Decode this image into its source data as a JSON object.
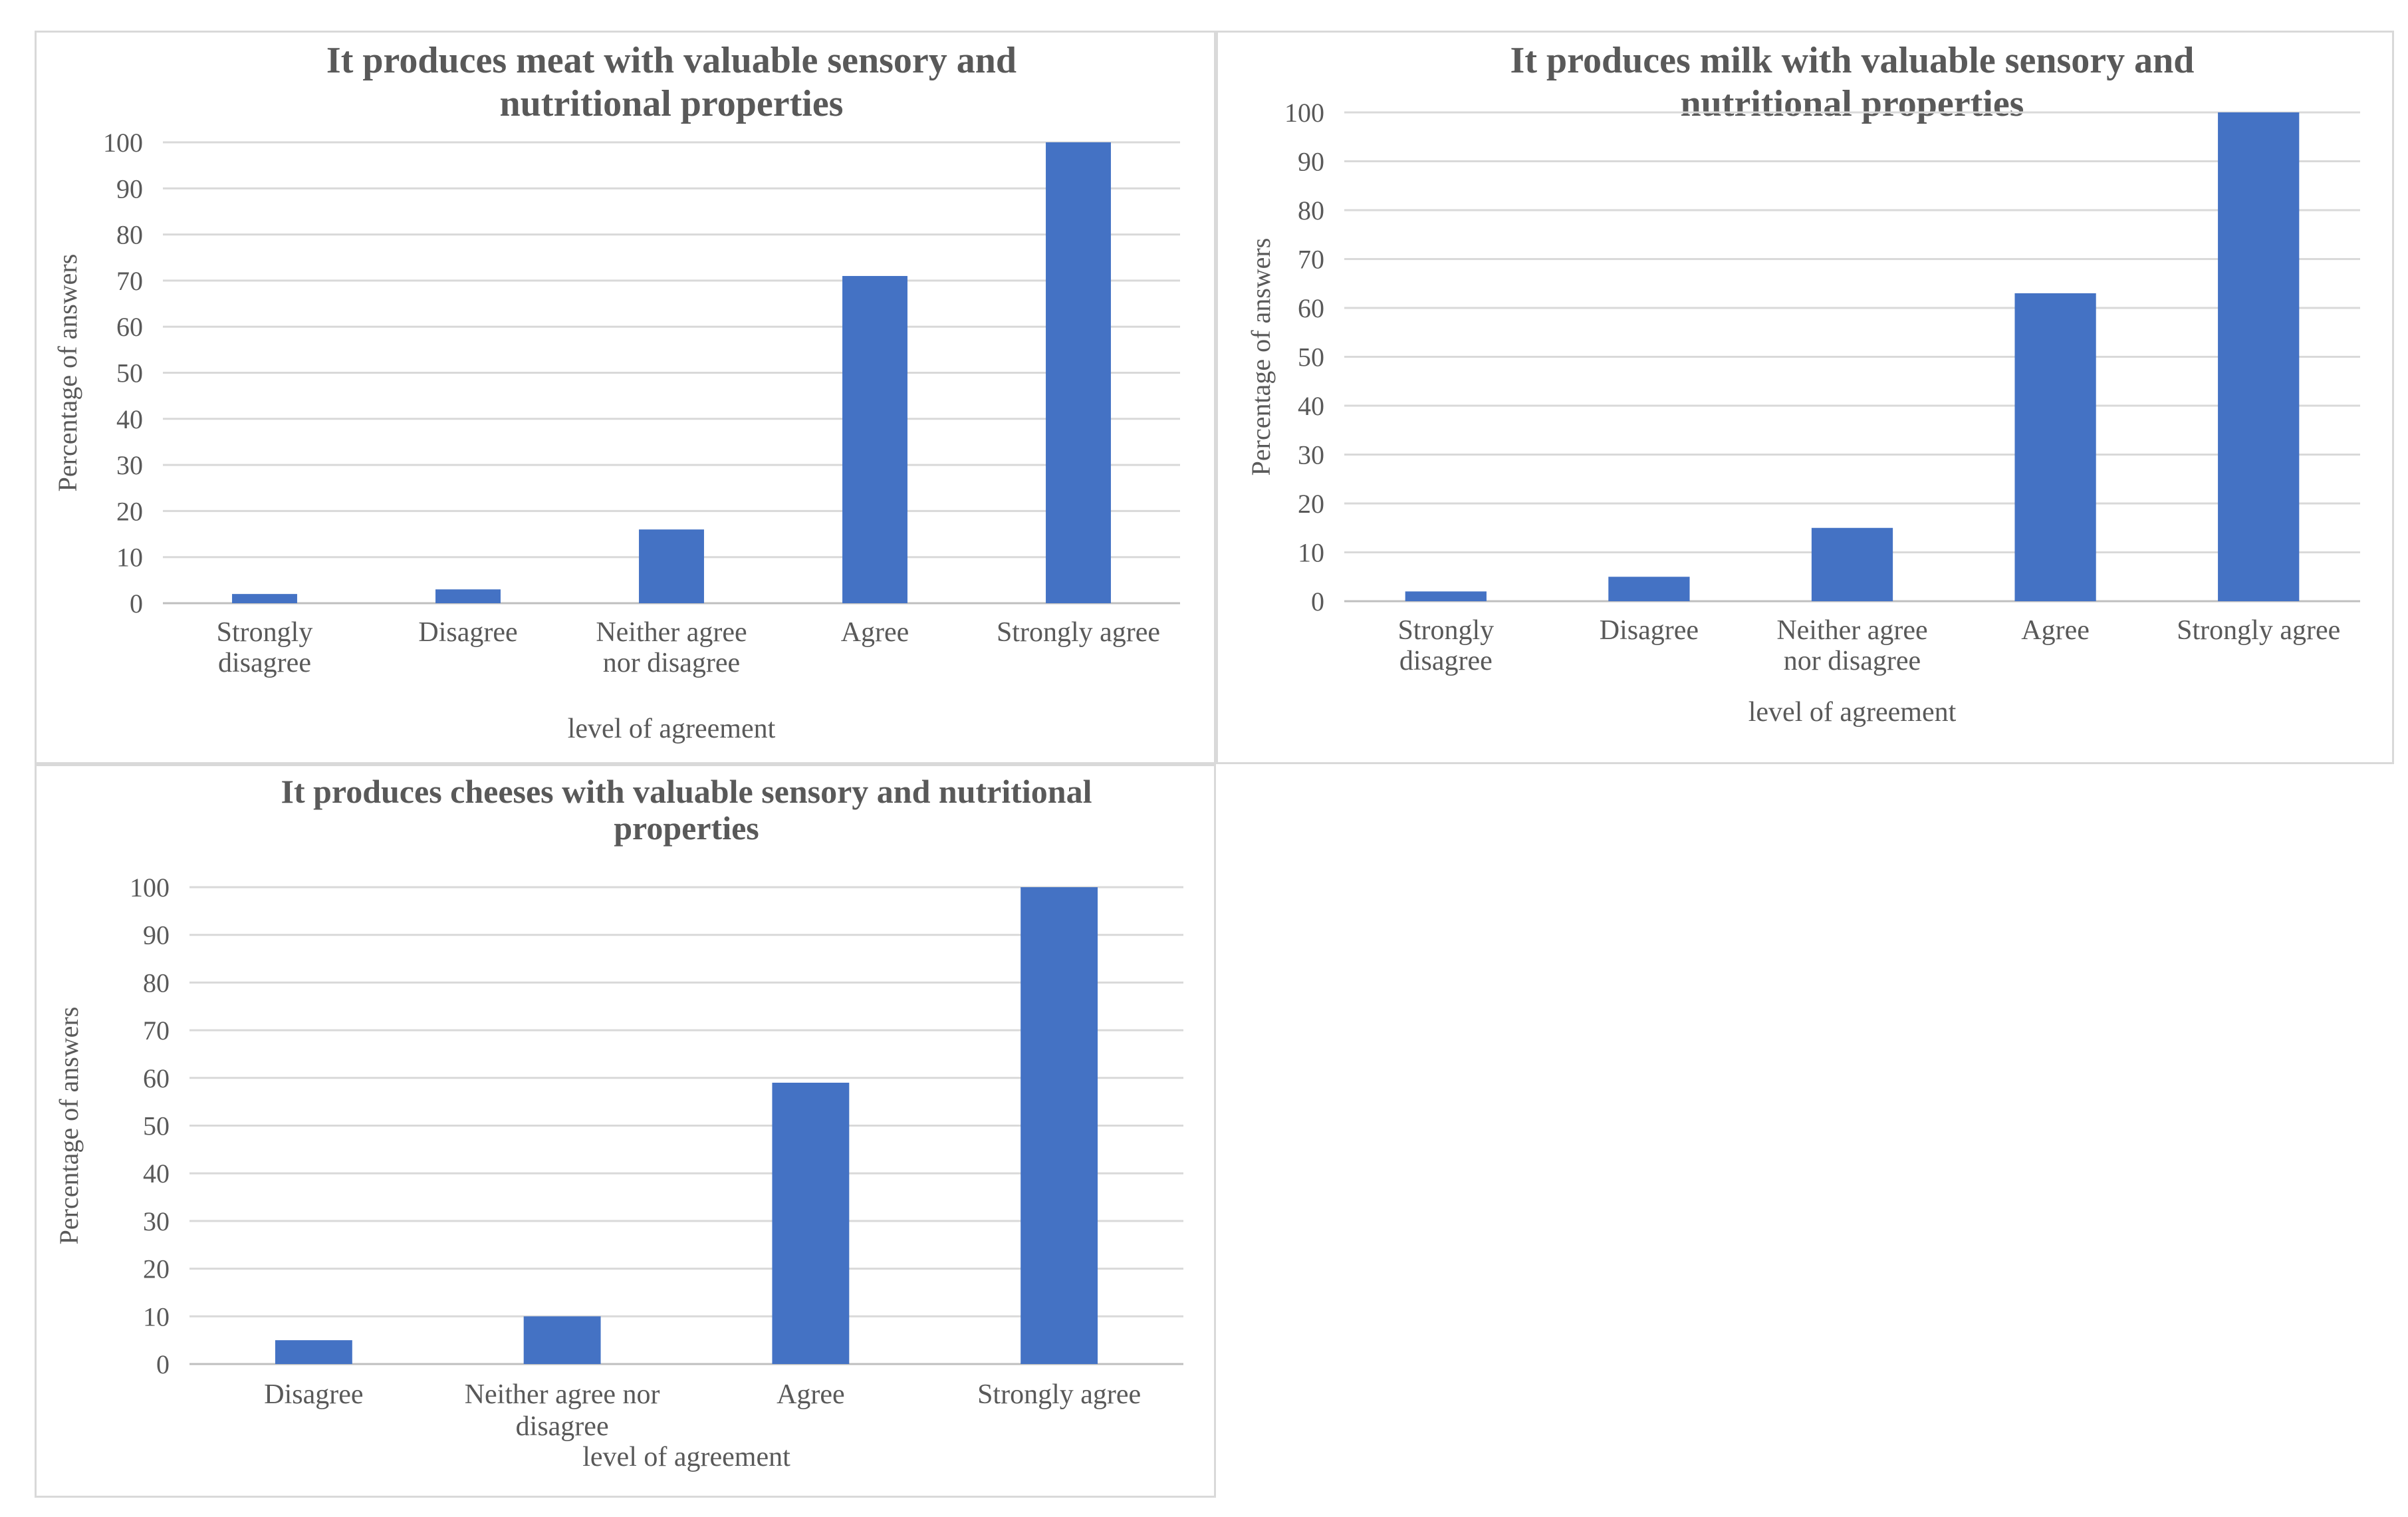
{
  "chart_data": [
    {
      "type": "bar",
      "title": [
        "It produces meat with valuable sensory and",
        "nutritional properties"
      ],
      "categories": [
        [
          "Strongly",
          "disagree"
        ],
        [
          "Disagree"
        ],
        [
          "Neither agree",
          "nor disagree"
        ],
        [
          "Agree"
        ],
        [
          "Strongly agree"
        ]
      ],
      "values": [
        2,
        3,
        16,
        71,
        100
      ],
      "xlabel": "level of agreement",
      "ylabel": "Percentage of answers",
      "ylim": [
        0,
        100
      ],
      "yticks": [
        0,
        10,
        20,
        30,
        40,
        50,
        60,
        70,
        80,
        90,
        100
      ],
      "grid": true,
      "legend": "none",
      "bar_color": "#4472c4"
    },
    {
      "type": "bar",
      "title": [
        "It produces milk with valuable sensory and",
        "nutritional properties"
      ],
      "categories": [
        [
          "Strongly",
          "disagree"
        ],
        [
          "Disagree"
        ],
        [
          "Neither agree",
          "nor disagree"
        ],
        [
          "Agree"
        ],
        [
          "Strongly agree"
        ]
      ],
      "values": [
        2,
        5,
        15,
        63,
        100
      ],
      "xlabel": "level of agreement",
      "ylabel": "Percentage of answers",
      "ylim": [
        0,
        100
      ],
      "yticks": [
        0,
        10,
        20,
        30,
        40,
        50,
        60,
        70,
        80,
        90,
        100
      ],
      "grid": true,
      "legend": "none",
      "bar_color": "#4472c4"
    },
    {
      "type": "bar",
      "title": [
        "It produces cheeses with valuable sensory and nutritional",
        "properties"
      ],
      "categories": [
        [
          "Disagree"
        ],
        [
          "Neither agree nor",
          "disagree"
        ],
        [
          "Agree"
        ],
        [
          "Strongly agree"
        ]
      ],
      "values": [
        5,
        10,
        59,
        100
      ],
      "xlabel": "level of agreement",
      "ylabel": "Percentage of answers",
      "ylim": [
        0,
        100
      ],
      "yticks": [
        0,
        10,
        20,
        30,
        40,
        50,
        60,
        70,
        80,
        90,
        100
      ],
      "grid": true,
      "legend": "none",
      "bar_color": "#4472c4"
    }
  ]
}
